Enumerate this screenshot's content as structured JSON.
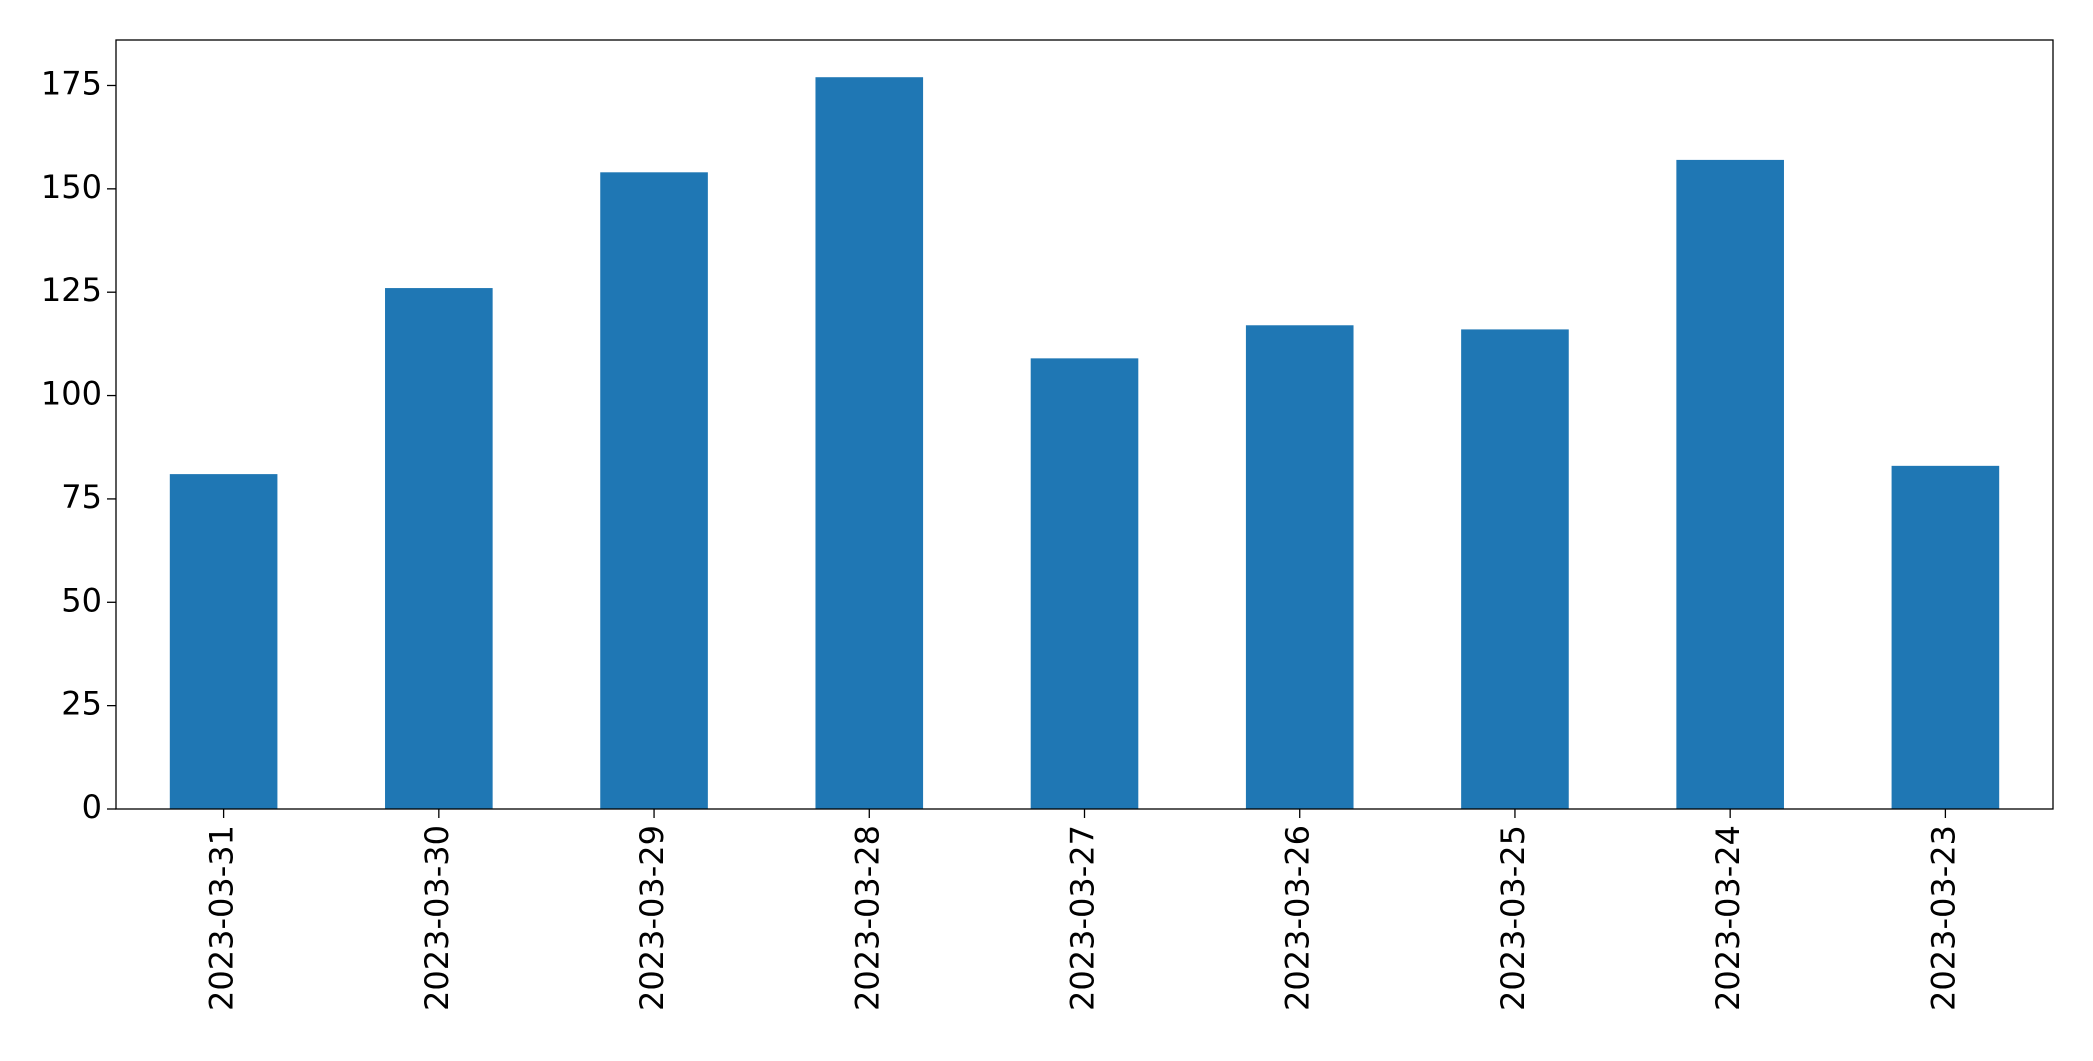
{
  "chart_data": {
    "type": "bar",
    "categories": [
      "2023-03-31",
      "2023-03-30",
      "2023-03-29",
      "2023-03-28",
      "2023-03-27",
      "2023-03-26",
      "2023-03-25",
      "2023-03-24",
      "2023-03-23"
    ],
    "values": [
      81,
      126,
      154,
      177,
      109,
      117,
      116,
      157,
      83
    ],
    "color": "#1f77b4",
    "ylim": [
      0,
      186
    ],
    "yticks": [
      0,
      25,
      50,
      75,
      100,
      125,
      150,
      175
    ],
    "grid": false
  }
}
